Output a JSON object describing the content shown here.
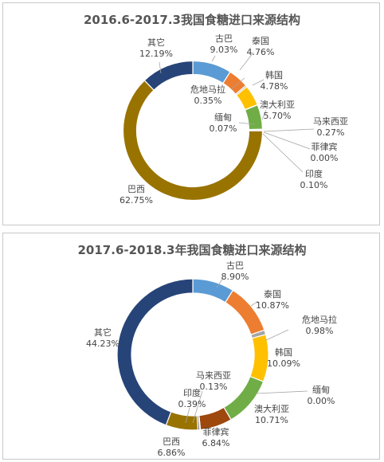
{
  "chart_data": [
    {
      "type": "pie",
      "title": "2016.6-2017.3我国食糖进口来源结构",
      "slices": [
        {
          "name": "古巴",
          "pct": "9.03%",
          "value": 9.03,
          "color": "#5b9bd5"
        },
        {
          "name": "泰国",
          "pct": "4.76%",
          "value": 4.76,
          "color": "#ed7d31"
        },
        {
          "name": "危地马拉",
          "pct": "0.35%",
          "value": 0.35,
          "color": "#a5a5a5"
        },
        {
          "name": "韩国",
          "pct": "4.78%",
          "value": 4.78,
          "color": "#ffc000"
        },
        {
          "name": "缅甸",
          "pct": "0.07%",
          "value": 0.07,
          "color": "#4472c4"
        },
        {
          "name": "澳大利亚",
          "pct": "5.70%",
          "value": 5.7,
          "color": "#70ad47"
        },
        {
          "name": "马来西亚",
          "pct": "0.27%",
          "value": 0.27,
          "color": "#264478"
        },
        {
          "name": "菲律宾",
          "pct": "0.00%",
          "value": 0.0,
          "color": "#9e480e"
        },
        {
          "name": "印度",
          "pct": "0.10%",
          "value": 0.1,
          "color": "#636363"
        },
        {
          "name": "巴西",
          "pct": "62.75%",
          "value": 62.75,
          "color": "#997300"
        },
        {
          "name": "其它",
          "pct": "12.19%",
          "value": 12.19,
          "color": "#264478"
        }
      ]
    },
    {
      "type": "pie",
      "title": "2017.6-2018.3年我国食糖进口来源结构",
      "slices": [
        {
          "name": "古巴",
          "pct": "8.90%",
          "value": 8.9,
          "color": "#5b9bd5"
        },
        {
          "name": "泰国",
          "pct": "10.87%",
          "value": 10.87,
          "color": "#ed7d31"
        },
        {
          "name": "危地马拉",
          "pct": "0.98%",
          "value": 0.98,
          "color": "#a5a5a5"
        },
        {
          "name": "韩国",
          "pct": "10.09%",
          "value": 10.09,
          "color": "#ffc000"
        },
        {
          "name": "缅甸",
          "pct": "0.00%",
          "value": 0.0,
          "color": "#4472c4"
        },
        {
          "name": "澳大利亚",
          "pct": "10.71%",
          "value": 10.71,
          "color": "#70ad47"
        },
        {
          "name": "菲律宾",
          "pct": "6.84%",
          "value": 6.84,
          "color": "#9e480e"
        },
        {
          "name": "马来西亚",
          "pct": "0.13%",
          "value": 0.13,
          "color": "#264478"
        },
        {
          "name": "印度",
          "pct": "0.39%",
          "value": 0.39,
          "color": "#636363"
        },
        {
          "name": "巴西",
          "pct": "6.86%",
          "value": 6.86,
          "color": "#997300"
        },
        {
          "name": "其它",
          "pct": "44.23%",
          "value": 44.23,
          "color": "#264478"
        }
      ]
    }
  ]
}
